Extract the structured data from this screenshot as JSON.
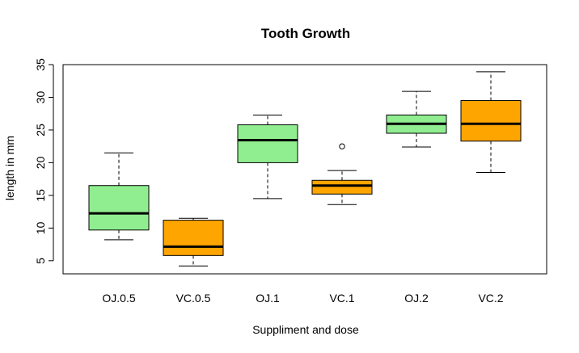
{
  "chart_data": {
    "type": "boxplot",
    "title": "Tooth Growth",
    "xlabel": "Suppliment and dose",
    "ylabel": "length in mm",
    "ylim": [
      3,
      35
    ],
    "yticks": [
      5,
      10,
      15,
      20,
      25,
      30,
      35
    ],
    "categories": [
      "OJ.0.5",
      "VC.0.5",
      "OJ.1",
      "VC.1",
      "OJ.2",
      "VC.2"
    ],
    "colors": {
      "OJ": "#90ee90",
      "VC": "#ffa500"
    },
    "boxes": [
      {
        "label": "OJ.0.5",
        "supp": "OJ",
        "min": 8.2,
        "q1": 9.7,
        "median": 12.25,
        "q3": 16.5,
        "max": 21.5,
        "outliers": []
      },
      {
        "label": "VC.0.5",
        "supp": "VC",
        "min": 4.2,
        "q1": 5.8,
        "median": 7.15,
        "q3": 11.2,
        "max": 11.5,
        "outliers": []
      },
      {
        "label": "OJ.1",
        "supp": "OJ",
        "min": 14.5,
        "q1": 20.0,
        "median": 23.45,
        "q3": 25.8,
        "max": 27.3,
        "outliers": []
      },
      {
        "label": "VC.1",
        "supp": "VC",
        "min": 13.6,
        "q1": 15.2,
        "median": 16.5,
        "q3": 17.3,
        "max": 18.8,
        "outliers": [
          22.5
        ]
      },
      {
        "label": "OJ.2",
        "supp": "OJ",
        "min": 22.4,
        "q1": 24.5,
        "median": 25.95,
        "q3": 27.3,
        "max": 30.9,
        "outliers": []
      },
      {
        "label": "VC.2",
        "supp": "VC",
        "min": 18.5,
        "q1": 23.3,
        "median": 25.95,
        "q3": 29.5,
        "max": 33.9,
        "outliers": []
      }
    ]
  }
}
